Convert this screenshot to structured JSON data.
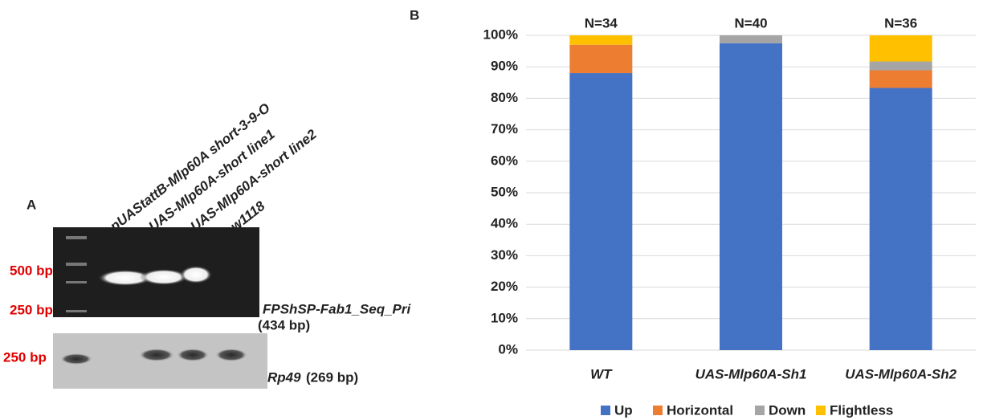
{
  "panel_a": {
    "label": "A",
    "lanes": [
      "pUAStattB-Mlp60A short-3-9-O",
      "UAS-Mlp60A-short line1",
      "UAS-Mlp60A-short line2",
      "w1118"
    ],
    "top_gel": {
      "markers": [
        "500 bp",
        "250 bp"
      ],
      "primer": "FPShSP-Fab1_Seq_Pri",
      "size": "(434 bp)"
    },
    "bottom_gel": {
      "markers": [
        "250 bp"
      ],
      "gene": "Rp49",
      "size": "(269 bp)"
    }
  },
  "panel_b_label": "B",
  "chart_data": {
    "type": "stacked_bar",
    "categories": [
      "WT",
      "UAS-Mlp60A-Sh1",
      "UAS-Mlp60A-Sh2"
    ],
    "bar_labels": [
      "N=34",
      "N=40",
      "N=36"
    ],
    "series": [
      {
        "name": "Up",
        "color": "#4472c4",
        "values": [
          88,
          97.5,
          83.3
        ]
      },
      {
        "name": "Horizontal",
        "color": "#ed7d31",
        "values": [
          9,
          0,
          5.6
        ]
      },
      {
        "name": "Down",
        "color": "#a5a5a5",
        "values": [
          0,
          2.5,
          2.8
        ]
      },
      {
        "name": "Flightless",
        "color": "#ffc000",
        "values": [
          3,
          0,
          8.3
        ]
      }
    ],
    "ylim": [
      0,
      100
    ],
    "yticks": [
      {
        "value": 0,
        "label": "0%"
      },
      {
        "value": 10,
        "label": "10%"
      },
      {
        "value": 20,
        "label": "20%"
      },
      {
        "value": 30,
        "label": "30%"
      },
      {
        "value": 40,
        "label": "40%"
      },
      {
        "value": 50,
        "label": "50%"
      },
      {
        "value": 60,
        "label": "60%"
      },
      {
        "value": 70,
        "label": "70%"
      },
      {
        "value": 80,
        "label": "80%"
      },
      {
        "value": 90,
        "label": "90%"
      },
      {
        "value": 100,
        "label": "100%"
      }
    ],
    "grid": true,
    "legend": "bottom"
  }
}
